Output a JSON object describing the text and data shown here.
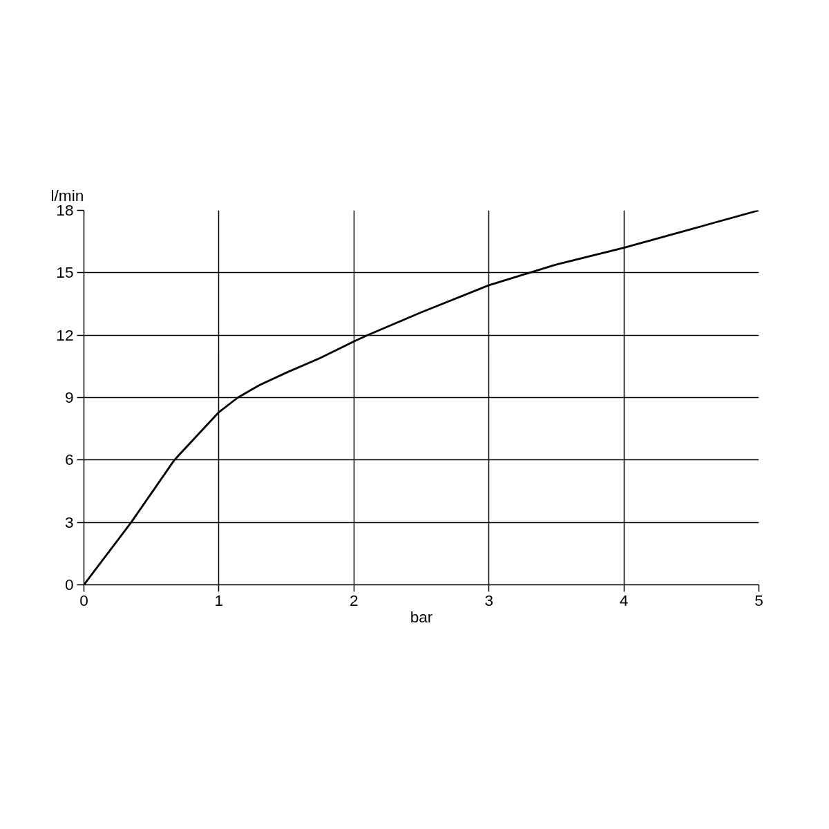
{
  "chart_data": {
    "type": "line",
    "xlabel": "bar",
    "ylabel": "l/min",
    "x": [
      0,
      0.35,
      0.67,
      1.0,
      1.14,
      1.3,
      1.5,
      1.75,
      2.0,
      2.1,
      2.5,
      3.0,
      3.3,
      3.5,
      4.0,
      4.5,
      5.0
    ],
    "series": [
      {
        "color": "#000000",
        "values": [
          0,
          3,
          6,
          8.3,
          9,
          9.6,
          10.2,
          10.9,
          11.7,
          12,
          13.1,
          14.4,
          15,
          15.4,
          16.2,
          17.1,
          18
        ]
      }
    ],
    "xlim": [
      0,
      5
    ],
    "ylim": [
      0,
      18
    ],
    "xticks": [
      0,
      1,
      2,
      3,
      4,
      5
    ],
    "yticks": [
      0,
      3,
      6,
      9,
      12,
      15,
      18
    ],
    "grid": true,
    "marker": "none",
    "line_style": "solid"
  }
}
